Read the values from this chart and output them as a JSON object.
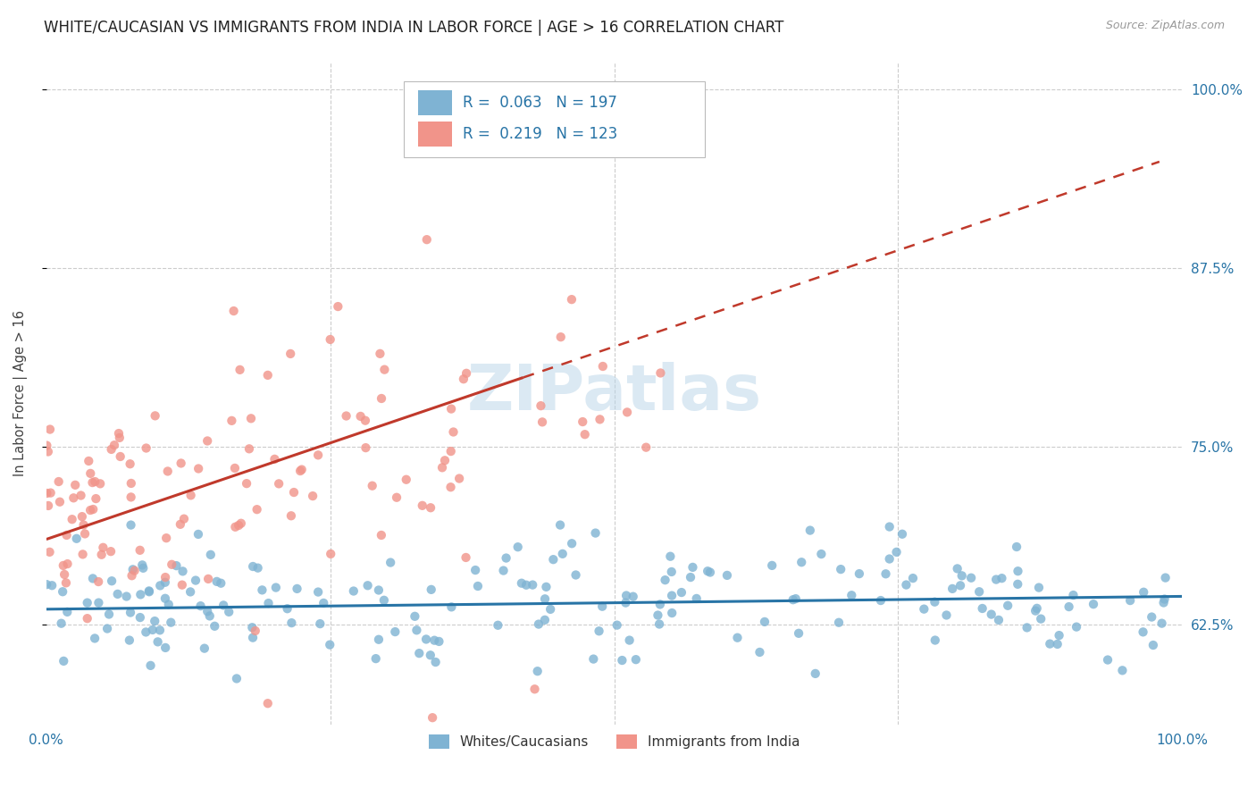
{
  "title": "WHITE/CAUCASIAN VS IMMIGRANTS FROM INDIA IN LABOR FORCE | AGE > 16 CORRELATION CHART",
  "source": "Source: ZipAtlas.com",
  "ylabel": "In Labor Force | Age > 16",
  "xlim": [
    0.0,
    1.0
  ],
  "ylim": [
    0.555,
    1.02
  ],
  "yticks": [
    0.625,
    0.75,
    0.875,
    1.0
  ],
  "ytick_labels": [
    "62.5%",
    "75.0%",
    "87.5%",
    "100.0%"
  ],
  "xtick_labels": [
    "0.0%",
    "100.0%"
  ],
  "blue_color": "#7FB3D3",
  "pink_color": "#F1948A",
  "blue_line_color": "#2874A6",
  "pink_line_color": "#C0392B",
  "blue_R": 0.063,
  "blue_N": 197,
  "pink_R": 0.219,
  "pink_N": 123,
  "background_color": "#FFFFFF",
  "grid_color": "#CCCCCC",
  "title_fontsize": 12,
  "watermark_color": "#B8D4E8",
  "watermark_alpha": 0.5
}
